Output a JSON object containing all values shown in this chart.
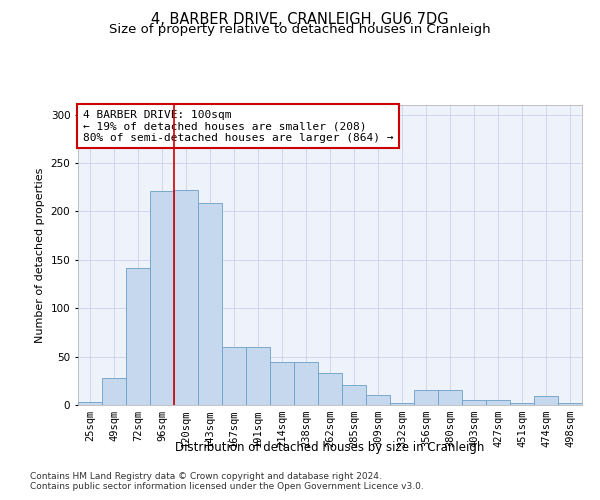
{
  "title": "4, BARBER DRIVE, CRANLEIGH, GU6 7DG",
  "subtitle": "Size of property relative to detached houses in Cranleigh",
  "xlabel": "Distribution of detached houses by size in Cranleigh",
  "ylabel": "Number of detached properties",
  "categories": [
    "25sqm",
    "49sqm",
    "72sqm",
    "96sqm",
    "120sqm",
    "143sqm",
    "167sqm",
    "191sqm",
    "214sqm",
    "238sqm",
    "262sqm",
    "285sqm",
    "309sqm",
    "332sqm",
    "356sqm",
    "380sqm",
    "403sqm",
    "427sqm",
    "451sqm",
    "474sqm",
    "498sqm"
  ],
  "bar_heights": [
    3,
    28,
    142,
    221,
    222,
    209,
    60,
    60,
    44,
    44,
    33,
    21,
    10,
    2,
    15,
    15,
    5,
    5,
    2,
    9,
    2
  ],
  "bar_color": "#c5d8ee",
  "bar_edge_color": "#6b9fc8",
  "grid_color": "#c8d4e8",
  "bg_color": "#eef2fa",
  "property_line_x": 3.5,
  "annotation_text": "4 BARBER DRIVE: 100sqm\n← 19% of detached houses are smaller (208)\n80% of semi-detached houses are larger (864) →",
  "annotation_box_color": "#ffffff",
  "annotation_box_edge": "#cc0000",
  "vline_color": "#cc0000",
  "footer_line1": "Contains HM Land Registry data © Crown copyright and database right 2024.",
  "footer_line2": "Contains public sector information licensed under the Open Government Licence v3.0.",
  "ylim": [
    0,
    310
  ],
  "title_fontsize": 10.5,
  "subtitle_fontsize": 9.5,
  "xlabel_fontsize": 8.5,
  "ylabel_fontsize": 8,
  "tick_fontsize": 7.5,
  "annotation_fontsize": 8,
  "footer_fontsize": 6.5
}
